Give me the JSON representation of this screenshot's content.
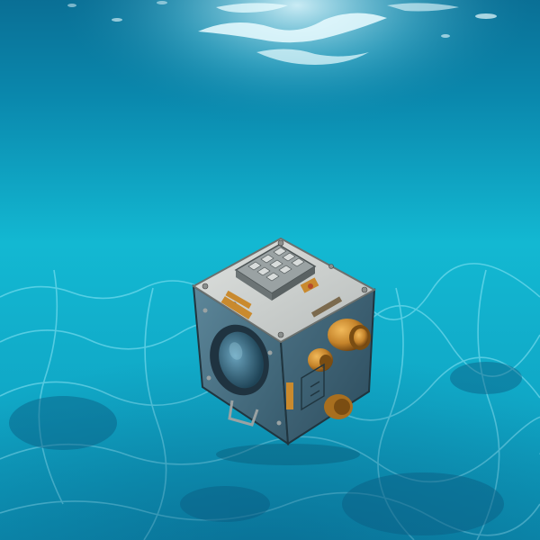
{
  "scene": {
    "colors": {
      "surface_light": "#e9fbff",
      "water_top": "#0a7fa3",
      "water_mid": "#12b6cf",
      "water_bottom": "#0c93b4",
      "floor_deep": "#0a5f86",
      "caustic": "#a8f1ff",
      "cube_top": "#c9cccb",
      "cube_left": "#4a7388",
      "cube_right": "#3a6175",
      "cube_edge": "#20353f",
      "brass": "#c98a2e",
      "brass_dark": "#7a4d12",
      "lens_ring": "#1f3340",
      "lens_glass": "#3b6c86"
    },
    "icons": {
      "cube": "underwater-device-cube-icon",
      "keypad": "keypad-icon",
      "porthole": "porthole-lens-icon",
      "valve": "brass-valve-icon",
      "handle": "handle-icon"
    }
  }
}
